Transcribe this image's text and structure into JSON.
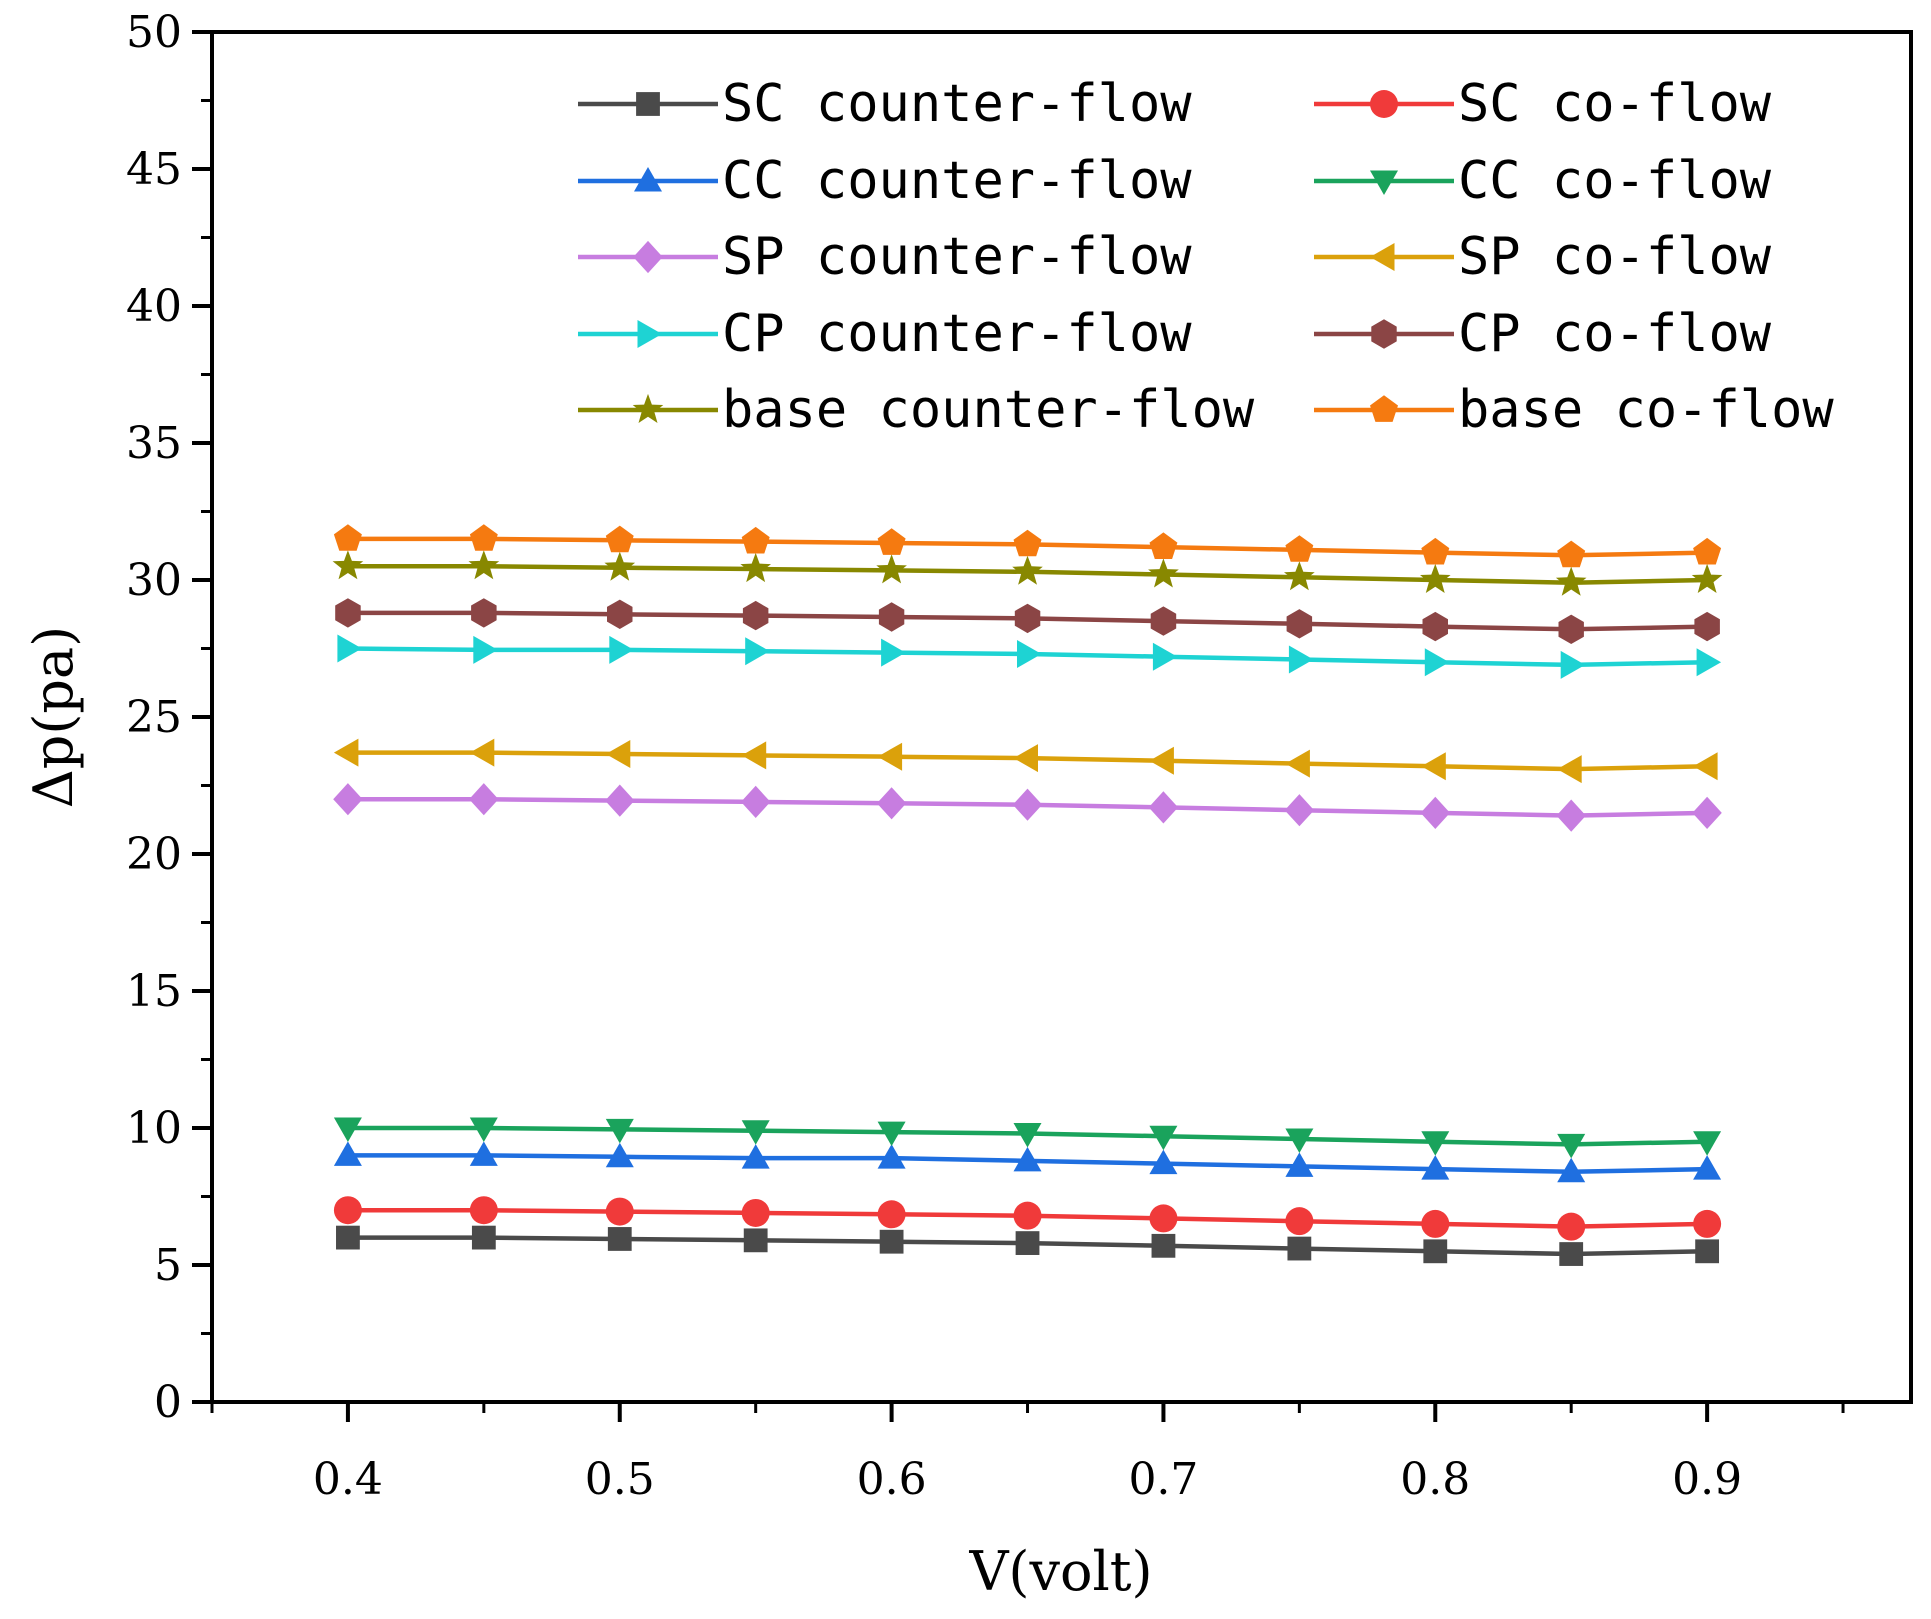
{
  "chart_data": {
    "type": "line",
    "title": "",
    "xlabel": "V(volt)",
    "ylabel": "Δp(pa)",
    "xlim": [
      0.35,
      0.975
    ],
    "ylim": [
      0,
      50
    ],
    "xticks": [
      0.4,
      0.5,
      0.6,
      0.7,
      0.8,
      0.9
    ],
    "xtick_labels": [
      "0.4",
      "0.5",
      "0.6",
      "0.7",
      "0.8",
      "0.9"
    ],
    "yticks": [
      0,
      5,
      10,
      15,
      20,
      25,
      30,
      35,
      40,
      45,
      50
    ],
    "ytick_labels": [
      "0",
      "5",
      "10",
      "15",
      "20",
      "25",
      "30",
      "35",
      "40",
      "45",
      "50"
    ],
    "grid": false,
    "legend": "top-right, two columns",
    "x": [
      0.4,
      0.45,
      0.5,
      0.55,
      0.6,
      0.65,
      0.7,
      0.75,
      0.8,
      0.85,
      0.9
    ],
    "series": [
      {
        "name": "SC counter-flow",
        "color": "#4a4a4a",
        "marker": "square",
        "values": [
          6.0,
          6.0,
          5.95,
          5.9,
          5.85,
          5.8,
          5.7,
          5.6,
          5.5,
          5.4,
          5.5
        ]
      },
      {
        "name": "SC co-flow",
        "color": "#f03a3a",
        "marker": "circle",
        "values": [
          7.0,
          7.0,
          6.95,
          6.9,
          6.85,
          6.8,
          6.7,
          6.6,
          6.5,
          6.4,
          6.5
        ]
      },
      {
        "name": "CC counter-flow",
        "color": "#1f6fe0",
        "marker": "triangle-up",
        "values": [
          9.0,
          9.0,
          8.95,
          8.9,
          8.9,
          8.8,
          8.7,
          8.6,
          8.5,
          8.4,
          8.5
        ]
      },
      {
        "name": "CC co-flow",
        "color": "#1aa35c",
        "marker": "triangle-down",
        "values": [
          10.0,
          10.0,
          9.95,
          9.9,
          9.85,
          9.8,
          9.7,
          9.6,
          9.5,
          9.4,
          9.5
        ]
      },
      {
        "name": "SP counter-flow",
        "color": "#c77de0",
        "marker": "diamond",
        "values": [
          22.0,
          22.0,
          21.95,
          21.9,
          21.85,
          21.8,
          21.7,
          21.6,
          21.5,
          21.4,
          21.5
        ]
      },
      {
        "name": "SP co-flow",
        "color": "#dba10b",
        "marker": "triangle-left",
        "values": [
          23.7,
          23.7,
          23.65,
          23.6,
          23.55,
          23.5,
          23.4,
          23.3,
          23.2,
          23.1,
          23.2
        ]
      },
      {
        "name": "CP counter-flow",
        "color": "#1ed3d3",
        "marker": "triangle-right",
        "values": [
          27.5,
          27.45,
          27.45,
          27.4,
          27.35,
          27.3,
          27.2,
          27.1,
          27.0,
          26.9,
          27.0
        ]
      },
      {
        "name": "CP co-flow",
        "color": "#8b4545",
        "marker": "hexagon",
        "values": [
          28.8,
          28.8,
          28.75,
          28.7,
          28.65,
          28.6,
          28.5,
          28.4,
          28.3,
          28.2,
          28.3
        ]
      },
      {
        "name": "base counter-flow",
        "color": "#888800",
        "marker": "star",
        "values": [
          30.5,
          30.5,
          30.45,
          30.4,
          30.35,
          30.3,
          30.2,
          30.1,
          30.0,
          29.9,
          30.0
        ]
      },
      {
        "name": "base co-flow",
        "color": "#f57a10",
        "marker": "pentagon",
        "values": [
          31.5,
          31.5,
          31.45,
          31.4,
          31.35,
          31.3,
          31.2,
          31.1,
          31.0,
          30.9,
          31.0
        ]
      }
    ]
  }
}
